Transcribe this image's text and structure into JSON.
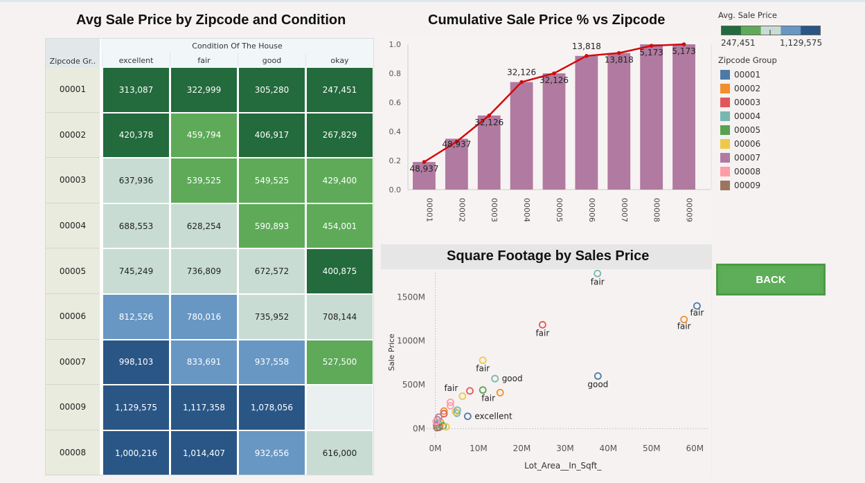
{
  "heatmap": {
    "title": "Avg Sale Price by Zipcode and Condition",
    "row_header": "Zipcode Gr..",
    "col_group_header": "Condition Of The House",
    "columns": [
      "excellent",
      "fair",
      "good",
      "okay"
    ],
    "rows": [
      {
        "zip": "00001",
        "values": [
          "313,087",
          "322,999",
          "305,280",
          "247,451"
        ],
        "levels": [
          0,
          0,
          0,
          0
        ]
      },
      {
        "zip": "00002",
        "values": [
          "420,378",
          "459,794",
          "406,917",
          "267,829"
        ],
        "levels": [
          0,
          1,
          0,
          0
        ]
      },
      {
        "zip": "00003",
        "values": [
          "637,936",
          "539,525",
          "549,525",
          "429,400"
        ],
        "levels": [
          2,
          1,
          1,
          1
        ]
      },
      {
        "zip": "00004",
        "values": [
          "688,553",
          "628,254",
          "590,893",
          "454,001"
        ],
        "levels": [
          2,
          2,
          1,
          1
        ]
      },
      {
        "zip": "00005",
        "values": [
          "745,249",
          "736,809",
          "672,572",
          "400,875"
        ],
        "levels": [
          2,
          2,
          2,
          0
        ]
      },
      {
        "zip": "00006",
        "values": [
          "812,526",
          "780,016",
          "735,952",
          "708,144"
        ],
        "levels": [
          3,
          3,
          2,
          2
        ]
      },
      {
        "zip": "00007",
        "values": [
          "998,103",
          "833,691",
          "937,558",
          "527,500"
        ],
        "levels": [
          4,
          3,
          3,
          1
        ]
      },
      {
        "zip": "00009",
        "values": [
          "1,129,575",
          "1,117,358",
          "1,078,056",
          ""
        ],
        "levels": [
          4,
          4,
          4,
          -1
        ]
      },
      {
        "zip": "00008",
        "values": [
          "1,000,216",
          "1,014,407",
          "932,656",
          "616,000"
        ],
        "levels": [
          4,
          4,
          3,
          2
        ]
      }
    ],
    "palette": [
      "#236a3c",
      "#5eaa59",
      "#c8dcd3",
      "#6897c4",
      "#2a5686"
    ],
    "empty_color": "#eaf0f0"
  },
  "cumulative": {
    "title": "Cumulative Sale Price % vs Zipcode",
    "bar_color": "#b07aa1",
    "line_color": "#d10b0b"
  },
  "legend": {
    "avg_title": "Avg. Sale Price",
    "avg_min": "247,451",
    "avg_max": "1,129,575",
    "zip_title": "Zipcode Group",
    "zip_items": [
      {
        "label": "00001",
        "color": "#4e79a7"
      },
      {
        "label": "00002",
        "color": "#f28e2b"
      },
      {
        "label": "00003",
        "color": "#e15759"
      },
      {
        "label": "00004",
        "color": "#76b7b2"
      },
      {
        "label": "00005",
        "color": "#59a14f"
      },
      {
        "label": "00006",
        "color": "#edc948"
      },
      {
        "label": "00007",
        "color": "#b07aa1"
      },
      {
        "label": "00008",
        "color": "#ff9da7"
      },
      {
        "label": "00009",
        "color": "#9c755f"
      }
    ]
  },
  "scatter": {
    "title": "Square Footage by Sales Price"
  },
  "back_button": {
    "label": "BACK"
  },
  "chart_data": [
    {
      "type": "bar",
      "title": "Cumulative Sale Price % vs Zipcode",
      "categories": [
        "00001",
        "00002",
        "00003",
        "00004",
        "00005",
        "00006",
        "00007",
        "00008",
        "00009"
      ],
      "ylim": [
        0,
        1.0
      ],
      "yticks": [
        "0.0",
        "0.2",
        "0.4",
        "0.6",
        "0.8",
        "1.0"
      ],
      "series": [
        {
          "values": [
            0.19,
            0.35,
            0.51,
            0.74,
            0.8,
            0.92,
            0.94,
            1.0,
            1.0
          ]
        },
        {
          "type": "line",
          "values": [
            0.19,
            0.33,
            0.51,
            0.74,
            0.8,
            0.92,
            0.94,
            0.99,
            1.0
          ]
        }
      ],
      "data_labels": [
        "48,937",
        "48,937",
        "32,126",
        "32,126",
        "32,126",
        "13,818",
        "13,818",
        "5,173",
        "5,173"
      ]
    },
    {
      "type": "scatter",
      "title": "Square Footage by Sales Price",
      "xlabel": "Lot_Area__In_Sqft_",
      "ylabel": "Sale Price",
      "xticks": [
        "0M",
        "10M",
        "20M",
        "30M",
        "40M",
        "50M",
        "60M"
      ],
      "yticks": [
        "0M",
        "500M",
        "1000M",
        "1500M"
      ],
      "xlim": [
        -2,
        63
      ],
      "ylim": [
        -100,
        1780
      ],
      "points": [
        {
          "x": 37.5,
          "y": 1770,
          "zip": "00004",
          "label": "fair"
        },
        {
          "x": 60.5,
          "y": 1400,
          "zip": "00001",
          "label": "fair"
        },
        {
          "x": 57.5,
          "y": 1245,
          "zip": "00002",
          "label": "fair"
        },
        {
          "x": 24.8,
          "y": 1185,
          "zip": "00003",
          "label": "fair"
        },
        {
          "x": 11,
          "y": 780,
          "zip": "00006",
          "label": "fair"
        },
        {
          "x": 13.8,
          "y": 570,
          "zip": "00004",
          "label": "good"
        },
        {
          "x": 37.6,
          "y": 600,
          "zip": "00001",
          "label": "good"
        },
        {
          "x": 11,
          "y": 440,
          "zip": "00005",
          "label": "fair"
        },
        {
          "x": 8,
          "y": 430,
          "zip": "00003",
          "label": "fair"
        },
        {
          "x": 15,
          "y": 410,
          "zip": "00002"
        },
        {
          "x": 6.3,
          "y": 370,
          "zip": "00006"
        },
        {
          "x": 3.5,
          "y": 300,
          "zip": "00008"
        },
        {
          "x": 3.5,
          "y": 260,
          "zip": "00008"
        },
        {
          "x": 7.5,
          "y": 140,
          "zip": "00001",
          "label": "excellent"
        },
        {
          "x": 5,
          "y": 175,
          "zip": "00004"
        },
        {
          "x": 4.7,
          "y": 190,
          "zip": "00006"
        },
        {
          "x": 5.1,
          "y": 210,
          "zip": "00004"
        },
        {
          "x": 2,
          "y": 200,
          "zip": "00002"
        },
        {
          "x": 2,
          "y": 170,
          "zip": "00003"
        },
        {
          "x": 0.8,
          "y": 130,
          "zip": "00007"
        },
        {
          "x": 0.5,
          "y": 100,
          "zip": "00007"
        },
        {
          "x": 1.2,
          "y": 70,
          "zip": "00002"
        },
        {
          "x": 0.7,
          "y": 60,
          "zip": "00004"
        },
        {
          "x": 0.3,
          "y": 40,
          "zip": "00007"
        },
        {
          "x": 1.8,
          "y": 30,
          "zip": "00005"
        },
        {
          "x": 2.5,
          "y": 20,
          "zip": "00006"
        },
        {
          "x": 0.4,
          "y": 10,
          "zip": "00009"
        },
        {
          "x": 0.9,
          "y": 15,
          "zip": "00009"
        },
        {
          "x": 0.2,
          "y": 80,
          "zip": "00008"
        }
      ]
    }
  ]
}
